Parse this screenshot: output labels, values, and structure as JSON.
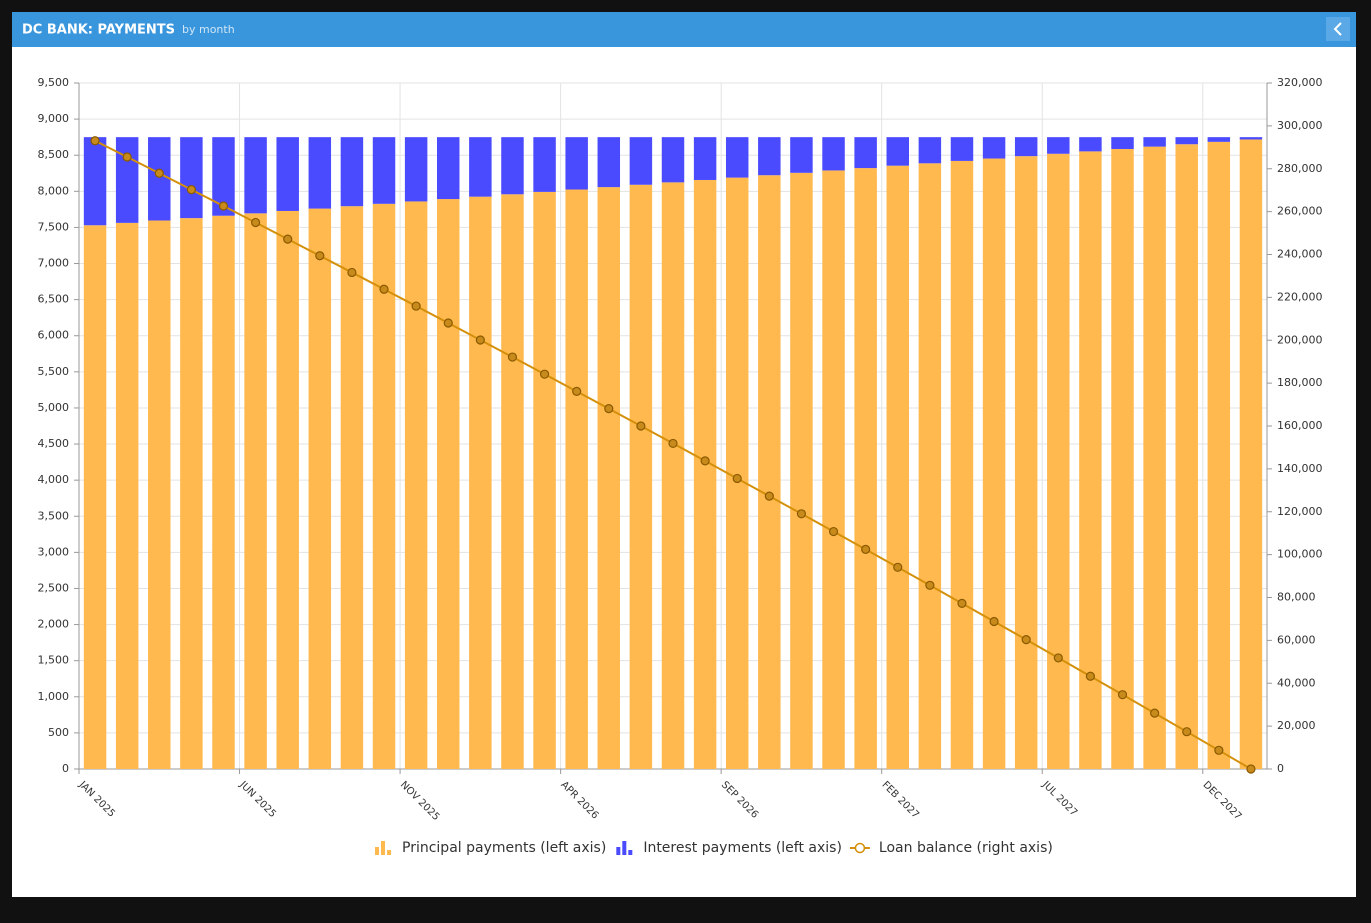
{
  "chart_data": {
    "type": "bar-line",
    "title": "DC BANK: PAYMENTS",
    "subtitle": "by month",
    "categories": [
      "JAN 2025",
      null,
      null,
      null,
      null,
      "JUN 2025",
      null,
      null,
      null,
      null,
      "NOV 2025",
      null,
      null,
      null,
      null,
      "APR 2026",
      null,
      null,
      null,
      null,
      "SEP 2026",
      null,
      null,
      null,
      null,
      "FEB 2027",
      null,
      null,
      null,
      null,
      "JUL 2027",
      null,
      null,
      null,
      null,
      "DEC 2027",
      null
    ],
    "series": [
      {
        "name": "Principal payments (left axis)",
        "color": "#ffb94f",
        "type": "bar",
        "axis": "y",
        "values": [
          7530,
          7563,
          7596,
          7629,
          7662,
          7695,
          7728,
          7761,
          7794,
          7827,
          7860,
          7893,
          7926,
          7959,
          7992,
          8025,
          8058,
          8091,
          8124,
          8157,
          8190,
          8223,
          8256,
          8289,
          8322,
          8355,
          8388,
          8421,
          8454,
          8487,
          8520,
          8553,
          8586,
          8619,
          8652,
          8685,
          8718
        ]
      },
      {
        "name": "Interest payments (left axis)",
        "color": "#4a4aff",
        "type": "bar",
        "axis": "y",
        "values": [
          1220,
          1187,
          1154,
          1121,
          1088,
          1055,
          1022,
          989,
          956,
          923,
          890,
          857,
          824,
          791,
          758,
          725,
          692,
          659,
          626,
          593,
          560,
          527,
          494,
          461,
          428,
          395,
          362,
          329,
          296,
          263,
          230,
          197,
          164,
          131,
          98,
          65,
          32
        ]
      },
      {
        "name": "Loan balance (right axis)",
        "color": "#d4900a",
        "type": "line",
        "axis": "y2",
        "values": [
          293058,
          285495,
          277899,
          270270,
          262608,
          254913,
          247185,
          239424,
          231630,
          223803,
          215943,
          208050,
          200124,
          192165,
          184173,
          176148,
          168090,
          159999,
          151875,
          143718,
          135528,
          127305,
          119049,
          110760,
          102438,
          94083,
          85695,
          77274,
          68820,
          60333,
          51813,
          43260,
          34674,
          26055,
          17403,
          8718,
          0
        ]
      }
    ],
    "stacked": true,
    "ylim": [
      0,
      9500
    ],
    "yticks": [
      0,
      500,
      {
        "value": 1000,
        "label": "1,000"
      },
      {
        "value": 1500,
        "label": "1,500"
      },
      {
        "value": 2000,
        "label": "2,000"
      },
      {
        "value": 2500,
        "label": "2,500"
      },
      {
        "value": 3000,
        "label": "3,000"
      },
      {
        "value": 3500,
        "label": "3,500"
      },
      {
        "value": 4000,
        "label": "4,000"
      },
      {
        "value": 4500,
        "label": "4,500"
      },
      {
        "value": 5000,
        "label": "5,000"
      },
      {
        "value": 5500,
        "label": "5,500"
      },
      {
        "value": 6000,
        "label": "6,000"
      },
      {
        "value": 6500,
        "label": "6,500"
      },
      {
        "value": 7000,
        "label": "7,000"
      },
      {
        "value": 7500,
        "label": "7,500"
      },
      {
        "value": 8000,
        "label": "8,000"
      },
      {
        "value": 8500,
        "label": "8,500"
      },
      {
        "value": 9000,
        "label": "9,000"
      },
      {
        "value": 9500,
        "label": "9,500"
      }
    ],
    "y2lim": [
      0,
      320000
    ],
    "y2ticks": [
      0,
      {
        "value": 20000,
        "label": "20,000"
      },
      {
        "value": 40000,
        "label": "40,000"
      },
      {
        "value": 60000,
        "label": "60,000"
      },
      {
        "value": 80000,
        "label": "80,000"
      },
      {
        "value": 100000,
        "label": "100,000"
      },
      {
        "value": 120000,
        "label": "120,000"
      },
      {
        "value": 140000,
        "label": "140,000"
      },
      {
        "value": 160000,
        "label": "160,000"
      },
      {
        "value": 180000,
        "label": "180,000"
      },
      {
        "value": 200000,
        "label": "200,000"
      },
      {
        "value": 220000,
        "label": "220,000"
      },
      {
        "value": 240000,
        "label": "240,000"
      },
      {
        "value": 260000,
        "label": "260,000"
      },
      {
        "value": 280000,
        "label": "280,000"
      },
      {
        "value": 300000,
        "label": "300,000"
      },
      {
        "value": 320000,
        "label": "320,000"
      }
    ],
    "grid": true,
    "legend": "bottom"
  }
}
